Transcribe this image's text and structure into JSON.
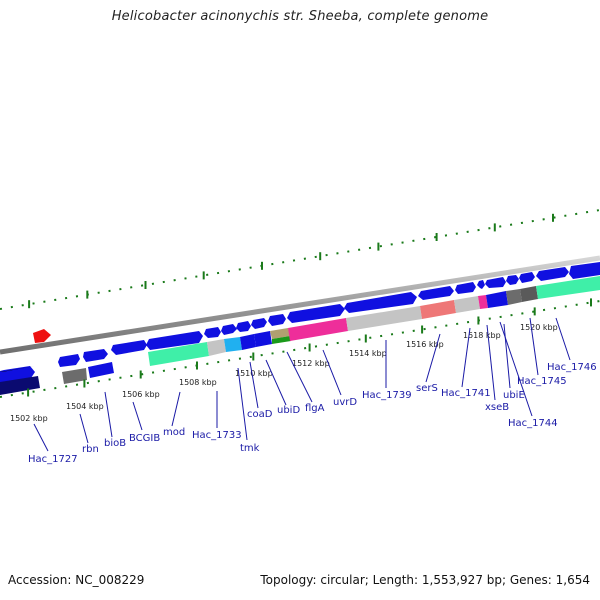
{
  "title": "Helicobacter acinonychis str. Sheeba, complete genome",
  "footer": {
    "accession": "Accession: NC_008229",
    "stats": "Topology: circular; Length: 1,553,927 bp; Genes: 1,654"
  },
  "kbp_labels": [
    "1502 kbp",
    "1504 kbp",
    "1506 kbp",
    "1508 kbp",
    "1510 kbp",
    "1512 kbp",
    "1514 kbp",
    "1516 kbp",
    "1518 kbp",
    "1520 kbp"
  ],
  "gene_labels": [
    "Hac_1727",
    "rbn",
    "bioB",
    "BCGIB",
    "mod",
    "Hac_1733",
    "tmk",
    "coaD",
    "ubiD",
    "flgA",
    "uvrD",
    "Hac_1739",
    "serS",
    "Hac_1741",
    "xseB",
    "Hac_1744",
    "ubiE",
    "Hac_1745",
    "Hac_1746"
  ],
  "colors": {
    "gene_blue": "#1010e0",
    "gene_navy": "#0a0a70",
    "rna_green": "#3fefa8",
    "gray": "#c4c4c4",
    "dark_gray": "#6c6c6c",
    "magenta": "#ee2e9a",
    "salmon": "#ee7777",
    "tick_green": "#1a7a1a",
    "label_blue": "#1a1aa6",
    "marker_red": "#ee1111"
  }
}
